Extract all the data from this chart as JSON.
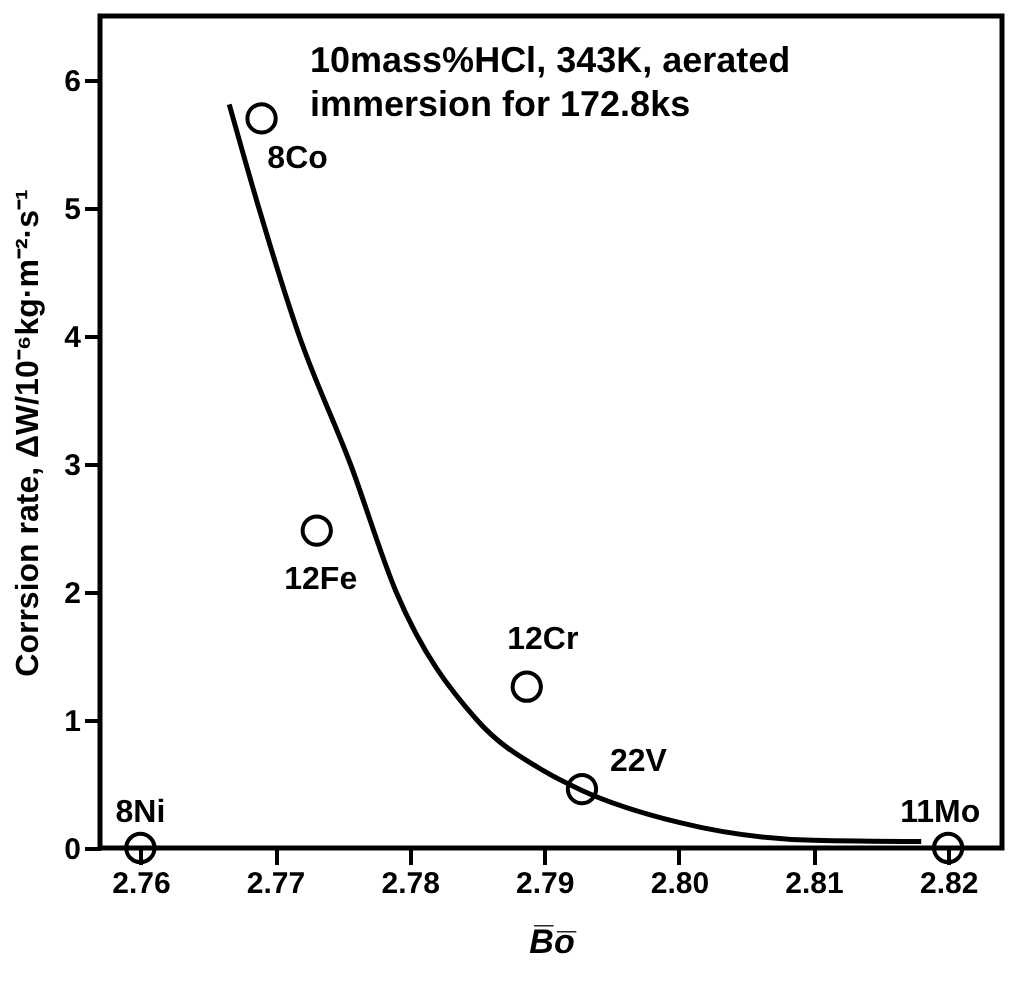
{
  "chart_data": {
    "type": "scatter",
    "xlabel": "B̅o̅",
    "ylabel": "Corrsion rate, ΔW/10⁻⁶kg·m⁻²·s⁻¹",
    "xlim": [
      2.757,
      2.824
    ],
    "xticks": [
      {
        "value": 2.76,
        "label": "2.76"
      },
      {
        "value": 2.77,
        "label": "2.77"
      },
      {
        "value": 2.78,
        "label": "2.78"
      },
      {
        "value": 2.79,
        "label": "2.79"
      },
      {
        "value": 2.8,
        "label": "2.80"
      },
      {
        "value": 2.81,
        "label": "2.81"
      },
      {
        "value": 2.82,
        "label": "2.82"
      }
    ],
    "ylim": [
      0,
      6.5
    ],
    "yticks": [
      0,
      1,
      2,
      3,
      4,
      5,
      6
    ],
    "grid": false,
    "marker": "circle",
    "series": [
      {
        "color": "#000000",
        "x": [
          2.76,
          2.769,
          2.7731,
          2.7887,
          2.7928,
          2.82
        ],
        "values": [
          0,
          5.7,
          2.48,
          1.26,
          0.46,
          0
        ]
      },
      {
        "type": "line",
        "color": "#000000",
        "line_style": "solid",
        "marker": "none",
        "x": [
          2.7666,
          2.7688,
          2.7718,
          2.7756,
          2.779,
          2.785,
          2.79,
          2.7928,
          2.8,
          2.81,
          2.818
        ],
        "values": [
          5.81,
          5,
          4,
          3,
          2,
          1,
          0.6,
          0.45,
          0.2,
          0.06,
          0.05
        ]
      }
    ],
    "annotations": [
      "10mass%HCl, 343K, aerated\nimmersion for 172.8ks",
      {
        "text": "8Ni",
        "x": 2.76,
        "y": 0
      },
      {
        "text": "8Co",
        "x": 2.769,
        "y": 5.7
      },
      {
        "text": "12Fe",
        "x": 2.7731,
        "y": 2.48
      },
      {
        "text": "12Cr",
        "x": 2.7887,
        "y": 1.26
      },
      {
        "text": "22V",
        "x": 2.7928,
        "y": 0.46
      },
      {
        "text": "11Mo",
        "x": 2.82,
        "y": 0
      }
    ]
  }
}
